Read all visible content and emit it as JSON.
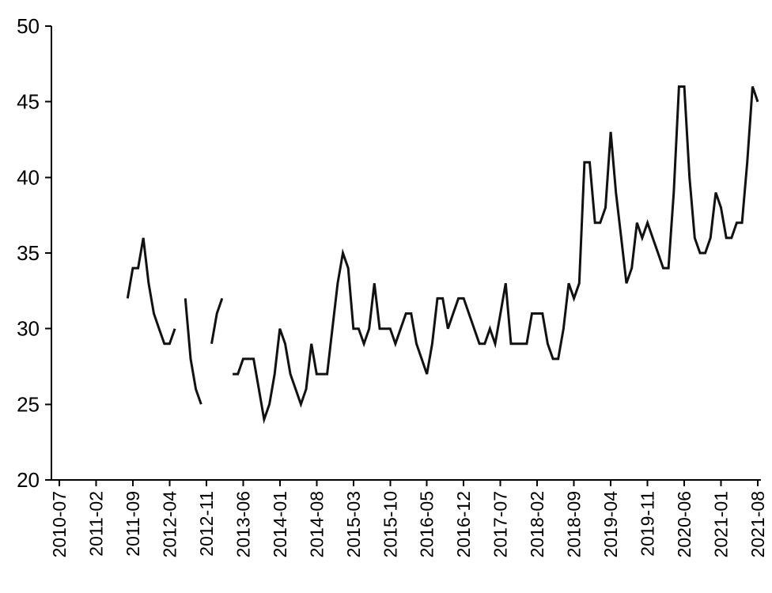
{
  "chart_data": {
    "type": "line",
    "title": "",
    "xlabel": "",
    "ylabel": "",
    "ylim": [
      20,
      50
    ],
    "yticks": [
      20,
      25,
      30,
      35,
      40,
      45,
      50
    ],
    "xtick_every": 7,
    "grid": false,
    "legend": "none",
    "line_color": "#111111",
    "axis_color": "#000000",
    "background_color": "#ffffff",
    "x": [
      "2010-07",
      "2010-08",
      "2010-09",
      "2010-10",
      "2010-11",
      "2010-12",
      "2011-01",
      "2011-02",
      "2011-03",
      "2011-04",
      "2011-05",
      "2011-06",
      "2011-07",
      "2011-08",
      "2011-09",
      "2011-10",
      "2011-11",
      "2011-12",
      "2012-01",
      "2012-02",
      "2012-03",
      "2012-04",
      "2012-05",
      "2012-06",
      "2012-07",
      "2012-08",
      "2012-09",
      "2012-10",
      "2012-11",
      "2012-12",
      "2013-01",
      "2013-02",
      "2013-03",
      "2013-04",
      "2013-05",
      "2013-06",
      "2013-07",
      "2013-08",
      "2013-09",
      "2013-10",
      "2013-11",
      "2013-12",
      "2014-01",
      "2014-02",
      "2014-03",
      "2014-04",
      "2014-05",
      "2014-06",
      "2014-07",
      "2014-08",
      "2014-09",
      "2014-10",
      "2014-11",
      "2014-12",
      "2015-01",
      "2015-02",
      "2015-03",
      "2015-04",
      "2015-05",
      "2015-06",
      "2015-07",
      "2015-08",
      "2015-09",
      "2015-10",
      "2015-11",
      "2015-12",
      "2016-01",
      "2016-02",
      "2016-03",
      "2016-04",
      "2016-05",
      "2016-06",
      "2016-07",
      "2016-08",
      "2016-09",
      "2016-10",
      "2016-11",
      "2016-12",
      "2017-01",
      "2017-02",
      "2017-03",
      "2017-04",
      "2017-05",
      "2017-06",
      "2017-07",
      "2017-08",
      "2017-09",
      "2017-10",
      "2017-11",
      "2017-12",
      "2018-01",
      "2018-02",
      "2018-03",
      "2018-04",
      "2018-05",
      "2018-06",
      "2018-07",
      "2018-08",
      "2018-09",
      "2018-10",
      "2018-11",
      "2018-12",
      "2019-01",
      "2019-02",
      "2019-03",
      "2019-04",
      "2019-05",
      "2019-06",
      "2019-07",
      "2019-08",
      "2019-09",
      "2019-10",
      "2019-11",
      "2019-12",
      "2020-01",
      "2020-02",
      "2020-03",
      "2020-04",
      "2020-05",
      "2020-06",
      "2020-07",
      "2020-08",
      "2020-09",
      "2020-10",
      "2020-11",
      "2020-12",
      "2021-01",
      "2021-02",
      "2021-03",
      "2021-04",
      "2021-05",
      "2021-06",
      "2021-07",
      "2021-08"
    ],
    "values": [
      null,
      null,
      null,
      null,
      null,
      null,
      null,
      null,
      null,
      null,
      null,
      null,
      null,
      32,
      34,
      34,
      36,
      33,
      31,
      30,
      29,
      29,
      30,
      null,
      32,
      28,
      26,
      25,
      null,
      29,
      31,
      32,
      null,
      27,
      27,
      28,
      28,
      28,
      26,
      24,
      25,
      27,
      30,
      29,
      27,
      26,
      25,
      26,
      29,
      27,
      27,
      27,
      30,
      33,
      35,
      34,
      30,
      30,
      29,
      30,
      33,
      30,
      30,
      30,
      29,
      30,
      31,
      31,
      29,
      28,
      27,
      29,
      32,
      32,
      30,
      31,
      32,
      32,
      31,
      30,
      29,
      29,
      30,
      29,
      31,
      33,
      29,
      29,
      29,
      29,
      31,
      31,
      31,
      29,
      28,
      28,
      30,
      33,
      32,
      33,
      41,
      41,
      37,
      37,
      38,
      43,
      39,
      36,
      33,
      34,
      37,
      36,
      37,
      36,
      35,
      34,
      34,
      39,
      46,
      46,
      40,
      36,
      35,
      35,
      36,
      39,
      38,
      36,
      36,
      37,
      37,
      41,
      46,
      45
    ]
  }
}
